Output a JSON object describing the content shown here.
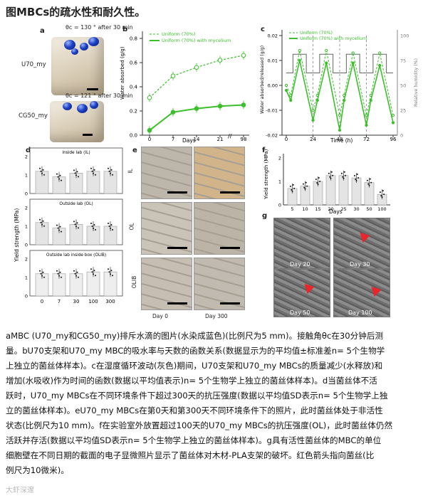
{
  "title": "图MBCs的疏水性和耐久性。",
  "panel_a": {
    "label": "a",
    "top_angle": "θc = 130 ° after 30 min",
    "top_name": "U70_my",
    "bottom_angle": "θc = 121 ° after 30 min",
    "bottom_name": "CG50_my"
  },
  "panel_b": {
    "label": "b",
    "legend1": "Uniform (70%)",
    "legend2": "Uniform (70%) with mycelium",
    "ylabel": "Water absorbed (g/g)",
    "xlabel": "Days",
    "xticks": [
      "0",
      "7",
      "14",
      "21",
      "98"
    ],
    "yticks": [
      "0.0",
      "0.2",
      "0.4",
      "0.6",
      "0.8"
    ]
  },
  "panel_c": {
    "label": "c",
    "legend1": "Uniform (70%)",
    "legend2": "Uniform (70%) with mycelium",
    "ylabel": "Water absorbed/released (g/g)",
    "y2label": "Relative humidity (%)",
    "xlabel": "Time (h)",
    "xticks": [
      "0",
      "24",
      "48",
      "72",
      "96"
    ],
    "yticks": [
      "0.02",
      "0.01",
      "0.00",
      "-0.01",
      "-0.02"
    ],
    "y2ticks": [
      "100",
      "75",
      "50",
      "25",
      "0"
    ]
  },
  "panel_d": {
    "label": "d",
    "sub1": "Inside lab (IL)",
    "sub2": "Outside lab (OL)",
    "sub3": "Outside lab inside box (OLIB)",
    "ylabel": "Yield strength (MPa)",
    "xticks": [
      "0",
      "7",
      "30",
      "100",
      "300"
    ],
    "yticks": [
      "0",
      "1",
      "2"
    ]
  },
  "panel_e": {
    "label": "e",
    "rows": [
      "IL",
      "OL",
      "OLIB"
    ],
    "cols": [
      "Day 0",
      "Day 300"
    ]
  },
  "panel_f": {
    "label": "f",
    "ylabel": "Yield strength (MPa)",
    "xlabel": "Days",
    "xticks": [
      "5",
      "10",
      "15",
      "20",
      "25",
      "30",
      "50",
      "100"
    ],
    "yticks": [
      "0",
      "1",
      "2"
    ]
  },
  "panel_g": {
    "label": "g",
    "images": [
      "Day 20",
      "Day 30",
      "Day 50",
      "Day 100"
    ]
  },
  "chart_data": [
    {
      "type": "line",
      "panel": "b",
      "x": [
        0,
        7,
        14,
        21,
        98
      ],
      "series": [
        {
          "name": "Uniform (70%)",
          "values": [
            0.31,
            0.49,
            0.56,
            0.62,
            0.66
          ]
        },
        {
          "name": "Uniform (70%) with mycelium",
          "values": [
            0.04,
            0.19,
            0.22,
            0.24,
            0.25
          ]
        }
      ],
      "xlabel": "Days",
      "ylabel": "Water absorbed (g/g)",
      "ylim": [
        0,
        0.8
      ]
    },
    {
      "type": "line",
      "panel": "c",
      "x": [
        0,
        4,
        12,
        24,
        28,
        36,
        48,
        52,
        60,
        72,
        76,
        84,
        96
      ],
      "series": [
        {
          "name": "Uniform (70%)",
          "values": [
            0.0,
            -0.004,
            0.014,
            -0.01,
            -0.004,
            0.014,
            -0.012,
            -0.004,
            0.013,
            -0.012,
            -0.004,
            0.013,
            -0.012
          ]
        },
        {
          "name": "Uniform (70%) with mycelium",
          "values": [
            -0.002,
            -0.006,
            0.01,
            -0.014,
            -0.006,
            0.009,
            -0.018,
            -0.006,
            0.009,
            -0.016,
            -0.006,
            0.008,
            -0.015
          ]
        }
      ],
      "xlabel": "Time (h)",
      "ylabel": "Water absorbed/released (g/g)",
      "ylim": [
        -0.02,
        0.02
      ]
    },
    {
      "type": "bar",
      "panel": "d",
      "categories": [
        "0",
        "7",
        "30",
        "100",
        "300"
      ],
      "series": [
        {
          "name": "Inside lab (IL)",
          "values": [
            1.2,
            0.9,
            1.1,
            1.2,
            1.2
          ]
        },
        {
          "name": "Outside lab (OL)",
          "values": [
            1.2,
            0.9,
            1.1,
            1.0,
            1.0
          ]
        },
        {
          "name": "Outside lab inside box (OLIB)",
          "values": [
            1.2,
            1.2,
            1.2,
            1.3,
            1.3
          ]
        }
      ],
      "ylabel": "Yield strength (MPa)",
      "ylim": [
        0,
        2
      ]
    },
    {
      "type": "bar",
      "panel": "f",
      "categories": [
        "5",
        "10",
        "15",
        "20",
        "25",
        "30",
        "50",
        "100"
      ],
      "values": [
        0.7,
        0.8,
        1.0,
        1.25,
        1.25,
        1.15,
        0.95,
        0.45
      ],
      "xlabel": "Days",
      "ylabel": "Yield strength (MPa)",
      "ylim": [
        0,
        2
      ]
    }
  ],
  "caption": {
    "line1": "aMBC (U70_my和CG50_my)排斥水滴的图片(水染成蓝色)(比例尺为5 mm)。接触角θc在30分钟后测",
    "line2": "量。bU70支架和U70_my MBC的吸水率与天数的函数关系(数据显示为的平均值±标准差n= 5个生物学",
    "line3": "上独立的菌丝体样本)。c在湿度循环波动(灰色)期间，U70支架和U70_my MBCs的质量减少(水释放)和",
    "line4": "增加(水吸收)作为时间的函数(数据以平均值表示)n= 5个生物学上独立的菌丝体样本)。d当菌丝体不活",
    "line5": "跃时，U70_my MBCs在不同环境条件下超过300天的抗压强度(数据以平均值SD表示n= 5个生物学上独",
    "line6": "立的菌丝体样本)。eU70_my MBCs在第0天和第300天不同环境条件下的照片，此时菌丝体处于非活性",
    "line7": "状态(比例尺为10 mm)。f在实验室外放置超过100天的U70_my MBCs的抗压强度(OL)，此时菌丝体仍然",
    "line8": "活跃并存活(数据以平均值SD表示n= 5个生物学上独立的菌丝体样本)。g具有活性菌丝体的MBC的单位",
    "line9": "细胞壁在不同日期的截面的电子显微照片显示了菌丝体对木材-PLA支架的破坏。红色箭头指向菌丝(比",
    "line10": "例尺为10微米)。"
  },
  "watermark": "大虾深邃",
  "colors": {
    "accent": "#3bbf2a",
    "grid": "#cfcfcf",
    "bar": "#e6e6e6"
  }
}
